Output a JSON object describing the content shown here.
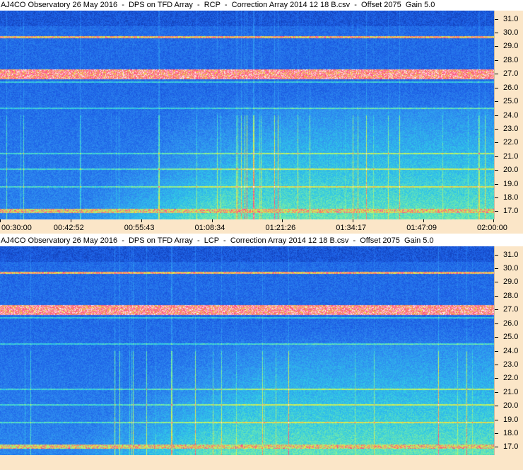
{
  "chart_data": [
    {
      "type": "heatmap",
      "title": "AJ4CO Observatory 26 May 2016  -  DPS on TFD Array  -  RCP  -  Correction Array 2014 12 18 B.csv  -  Offset 2075  Gain 5.0",
      "xlabel": "",
      "ylabel": "",
      "x_tick_labels": [
        "00:30:00",
        "00:42:52",
        "00:55:43",
        "01:08:34",
        "01:21:26",
        "01:34:17",
        "01:47:09",
        "02:00:00"
      ],
      "y_tick_labels": [
        "31.0",
        "30.0",
        "29.0",
        "28.0",
        "27.0",
        "26.0",
        "25.0",
        "24.0",
        "23.0",
        "22.0",
        "21.0",
        "20.0",
        "19.0",
        "18.0",
        "17.0"
      ],
      "ylim": [
        16.4,
        31.6
      ],
      "xlim": [
        "00:30:00",
        "02:00:00"
      ],
      "features": {
        "interference_bands": [
          27.0,
          29.7,
          17.1
        ],
        "faint_bands": [
          20.1,
          18.8,
          21.2,
          24.5,
          26.4
        ],
        "time_gradient": "intensity rises after about 00:55 at lower frequencies"
      }
    },
    {
      "type": "heatmap",
      "title": "AJ4CO Observatory 26 May 2016  -  DPS on TFD Array  -  LCP  -  Correction Array 2014 12 18 B.csv  -  Offset 2075  Gain 5.0",
      "xlabel": "",
      "ylabel": "",
      "x_tick_labels": [],
      "y_tick_labels": [
        "31.0",
        "30.0",
        "29.0",
        "28.0",
        "27.0",
        "26.0",
        "25.0",
        "24.0",
        "23.0",
        "22.0",
        "21.0",
        "20.0",
        "19.0",
        "18.0",
        "17.0"
      ],
      "ylim": [
        16.4,
        31.6
      ],
      "xlim": [
        "00:30:00",
        "02:00:00"
      ],
      "features": {
        "interference_bands": [
          27.0,
          29.7,
          17.1
        ],
        "faint_bands": [
          20.1,
          18.8,
          21.2,
          24.5,
          26.4
        ],
        "time_gradient": "intensity rises after about 00:55 at lower frequencies"
      }
    }
  ],
  "colors": {
    "background_axis": "#fbe6c8",
    "colormap": [
      "#0b2f9e",
      "#1d5fe6",
      "#2f8ff0",
      "#2fc7e8",
      "#7ef0a0",
      "#e8f040",
      "#ff4080",
      "#ffffff"
    ]
  }
}
